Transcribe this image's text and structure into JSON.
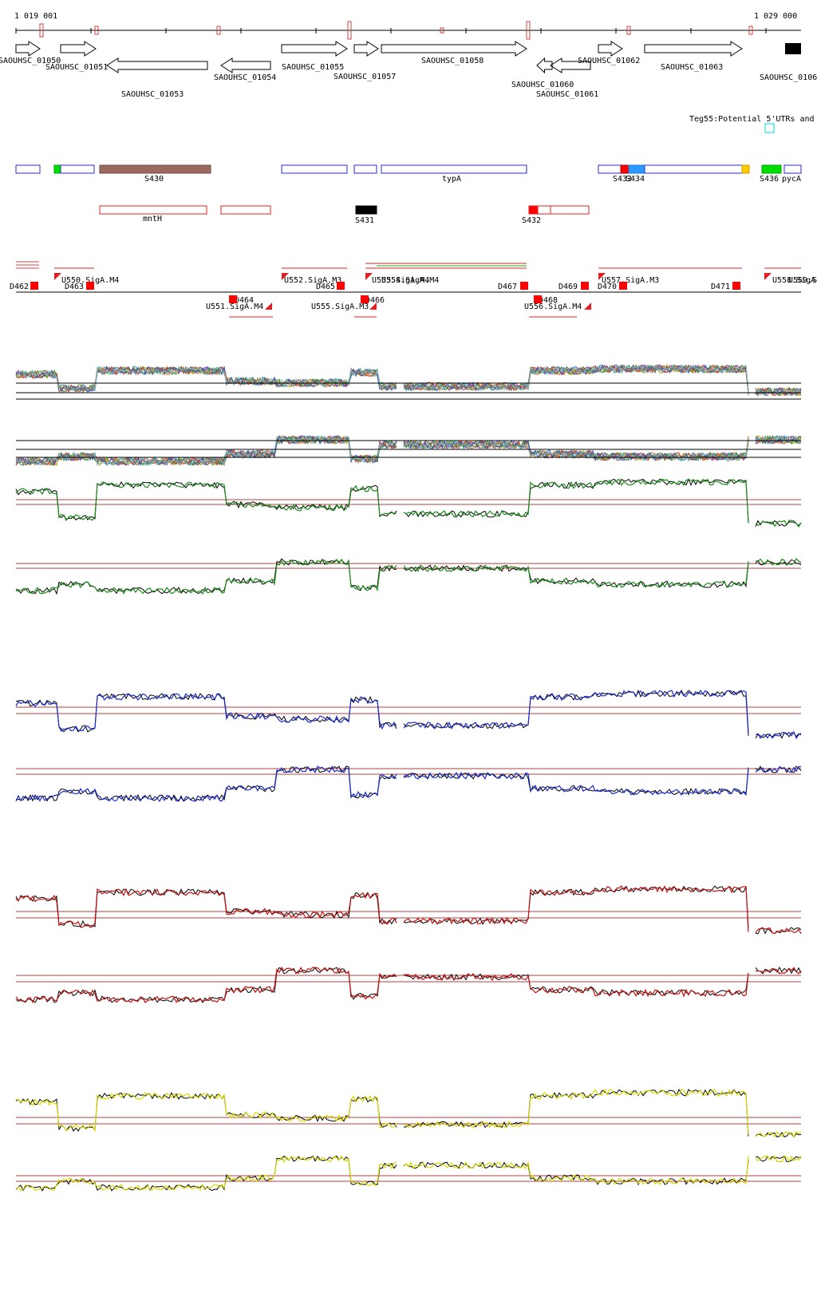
{
  "coords": {
    "start": "1 019 001",
    "end": "1 029 000"
  },
  "genes": [
    {
      "label": "SAOUHSC_01050",
      "strand": "+"
    },
    {
      "label": "SAOUHSC_01051",
      "strand": "+"
    },
    {
      "label": "SAOUHSC_01053",
      "strand": "-"
    },
    {
      "label": "SAOUHSC_01054",
      "strand": "-"
    },
    {
      "label": "SAOUHSC_01055",
      "strand": "+"
    },
    {
      "label": "SAOUHSC_01057",
      "strand": "+"
    },
    {
      "label": "SAOUHSC_01058",
      "strand": "+"
    },
    {
      "label": "SAOUHSC_01060",
      "strand": "-"
    },
    {
      "label": "SAOUHSC_01061",
      "strand": "-"
    },
    {
      "label": "SAOUHSC_01062",
      "strand": "+"
    },
    {
      "label": "SAOUHSC_01063",
      "strand": "+"
    },
    {
      "label": "SAOUHSC_0106",
      "strand": "+"
    }
  ],
  "teg55_title": "Teg55:Potential 5'UTRs and",
  "segments": [
    {
      "label": "S430",
      "color": "#9a6a60"
    },
    {
      "label": "typA",
      "color": "#2a2ad0"
    },
    {
      "label": "S433",
      "color": "#ff0000"
    },
    {
      "label": "S434",
      "color": "#2a9aff"
    },
    {
      "label": "S436",
      "color": "#00dd00"
    },
    {
      "label": "pycA",
      "color": "#2a2ad0"
    }
  ],
  "antisense": [
    {
      "label": "mntH"
    },
    {
      "label": "S431"
    },
    {
      "label": "S432"
    }
  ],
  "promoters_top": [
    {
      "label": "U550.SigA.M4"
    },
    {
      "label": "U552.SigA.M3"
    },
    {
      "label": "U553.SigA.M4"
    },
    {
      "label": "U554.SigA.M4"
    },
    {
      "label": "U557.SigA.M3"
    },
    {
      "label": "U558.SigA"
    },
    {
      "label": "U559.SigA"
    }
  ],
  "promoters_bottom": [
    {
      "label": "U551.SigA.M4"
    },
    {
      "label": "U555.SigA.M3"
    },
    {
      "label": "U556.SigA.M4"
    }
  ],
  "terminators": [
    "D462",
    "D463",
    "D464",
    "D465",
    "D466",
    "D467",
    "D468",
    "D469",
    "D470",
    "D471"
  ],
  "track_colors": {
    "green": "#1a8a1a",
    "blue": "#1a2ad0",
    "red": "#c81010",
    "yellow": "#d8d800",
    "rule": "#b04040"
  }
}
